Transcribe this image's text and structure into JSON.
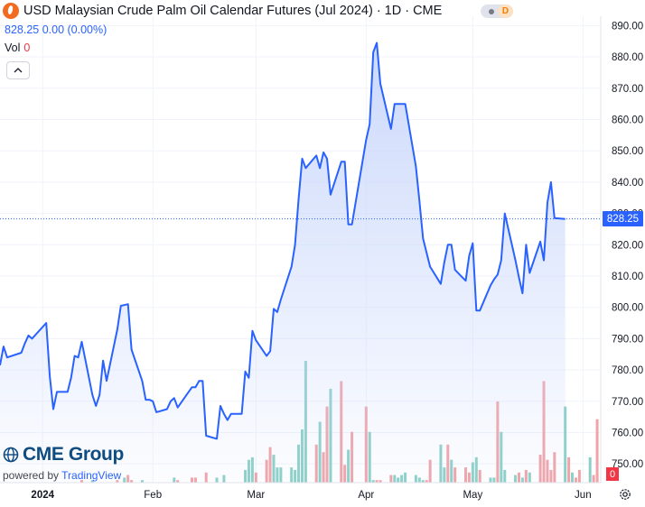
{
  "header": {
    "title": "USD Malaysian Crude Palm Oil Calendar Futures (Jul 2024)",
    "interval": "1D",
    "exchange": "CME",
    "separator": "·",
    "toggle_badge": "D"
  },
  "legend": {
    "price_text": "828.25 0.00 (0.00%)",
    "vol_label": "Vol",
    "vol_value": "0"
  },
  "watermark": {
    "brand": "CME Group",
    "powered_prefix": "powered by",
    "powered_name": "TradingView"
  },
  "icons": [
    "logo-icon",
    "toggle-switch-icon",
    "chevron-up-icon",
    "cme-globe-icon",
    "settings-gear-icon"
  ],
  "colors": {
    "line": "#2962ff",
    "area_top": "#c9d7fb",
    "volume_up": "#8ccfc7",
    "volume_down": "#f0a3a8",
    "price_label_bg": "#2962ff",
    "volume_label_bg": "#f23645",
    "grid": "#f0f3fa",
    "logo": "#f26b21"
  },
  "chart_data": {
    "type": "area",
    "title": "USD Malaysian Crude Palm Oil Calendar Futures (Jul 2024)",
    "interval": "1D",
    "exchange": "CME",
    "xlabel": "",
    "ylabel": "",
    "ylim": [
      744,
      893
    ],
    "y_ticks": [
      890,
      880,
      870,
      860,
      850,
      840,
      830,
      820,
      810,
      800,
      790,
      780,
      770,
      760,
      750
    ],
    "x_ticks": [
      "2024",
      "Feb",
      "Mar",
      "Apr",
      "May",
      "Jun"
    ],
    "x_tick_dates": [
      "2024-01-01",
      "2024-02-01",
      "2024-03-01",
      "2024-04-01",
      "2024-05-01",
      "2024-06-01"
    ],
    "x_range": [
      "2023-12-20",
      "2024-06-06"
    ],
    "grid": true,
    "last_price": 828.25,
    "last_price_label": "828.25",
    "last_volume": 0,
    "last_volume_label": "0",
    "series": [
      {
        "values": [
          [
            "2023-12-20",
            781.5
          ],
          [
            "2023-12-21",
            787.5
          ],
          [
            "2023-12-22",
            784
          ],
          [
            "2023-12-26",
            785.5
          ],
          [
            "2023-12-27",
            788.5
          ],
          [
            "2023-12-28",
            791
          ],
          [
            "2023-12-29",
            790
          ],
          [
            "2024-01-02",
            795
          ],
          [
            "2024-01-03",
            778
          ],
          [
            "2024-01-04",
            767.5
          ],
          [
            "2024-01-05",
            773
          ],
          [
            "2024-01-08",
            773
          ],
          [
            "2024-01-09",
            777.5
          ],
          [
            "2024-01-10",
            784.5
          ],
          [
            "2024-01-11",
            784
          ],
          [
            "2024-01-12",
            789
          ],
          [
            "2024-01-15",
            772
          ],
          [
            "2024-01-16",
            768.5
          ],
          [
            "2024-01-17",
            772
          ],
          [
            "2024-01-18",
            783
          ],
          [
            "2024-01-19",
            776.5
          ],
          [
            "2024-01-22",
            793
          ],
          [
            "2024-01-23",
            800.5
          ],
          [
            "2024-01-25",
            801
          ],
          [
            "2024-01-26",
            786.5
          ],
          [
            "2024-01-29",
            776.5
          ],
          [
            "2024-01-30",
            770.5
          ],
          [
            "2024-01-31",
            770.5
          ],
          [
            "2024-02-01",
            770
          ],
          [
            "2024-02-02",
            766.5
          ],
          [
            "2024-02-05",
            767.5
          ],
          [
            "2024-02-06",
            770
          ],
          [
            "2024-02-07",
            771
          ],
          [
            "2024-02-08",
            768
          ],
          [
            "2024-02-12",
            774.5
          ],
          [
            "2024-02-13",
            774.5
          ],
          [
            "2024-02-14",
            776.5
          ],
          [
            "2024-02-15",
            776.5
          ],
          [
            "2024-02-16",
            759
          ],
          [
            "2024-02-19",
            758
          ],
          [
            "2024-02-20",
            768.5
          ],
          [
            "2024-02-21",
            766
          ],
          [
            "2024-02-22",
            764
          ],
          [
            "2024-02-23",
            766
          ],
          [
            "2024-02-26",
            766
          ],
          [
            "2024-02-27",
            779.5
          ],
          [
            "2024-02-28",
            777.5
          ],
          [
            "2024-02-29",
            792.5
          ],
          [
            "2024-03-01",
            789.5
          ],
          [
            "2024-03-04",
            784.5
          ],
          [
            "2024-03-05",
            786
          ],
          [
            "2024-03-06",
            799.5
          ],
          [
            "2024-03-07",
            798.5
          ],
          [
            "2024-03-08",
            802.5
          ],
          [
            "2024-03-11",
            813
          ],
          [
            "2024-03-12",
            820
          ],
          [
            "2024-03-13",
            834.5
          ],
          [
            "2024-03-14",
            847.5
          ],
          [
            "2024-03-15",
            844.5
          ],
          [
            "2024-03-18",
            848.5
          ],
          [
            "2024-03-19",
            844.5
          ],
          [
            "2024-03-20",
            849.5
          ],
          [
            "2024-03-21",
            847.5
          ],
          [
            "2024-03-22",
            836
          ],
          [
            "2024-03-25",
            846.5
          ],
          [
            "2024-03-26",
            846.5
          ],
          [
            "2024-03-27",
            826.5
          ],
          [
            "2024-03-28",
            826.5
          ],
          [
            "2024-04-01",
            853.5
          ],
          [
            "2024-04-02",
            858.5
          ],
          [
            "2024-04-03",
            881.5
          ],
          [
            "2024-04-04",
            884.5
          ],
          [
            "2024-04-05",
            871.5
          ],
          [
            "2024-04-08",
            857
          ],
          [
            "2024-04-09",
            865
          ],
          [
            "2024-04-12",
            865
          ],
          [
            "2024-04-15",
            845
          ],
          [
            "2024-04-16",
            834
          ],
          [
            "2024-04-17",
            822
          ],
          [
            "2024-04-18",
            817.5
          ],
          [
            "2024-04-19",
            813
          ],
          [
            "2024-04-22",
            807.5
          ],
          [
            "2024-04-23",
            814.5
          ],
          [
            "2024-04-24",
            820
          ],
          [
            "2024-04-25",
            820
          ],
          [
            "2024-04-26",
            812
          ],
          [
            "2024-04-29",
            808.5
          ],
          [
            "2024-04-30",
            816.5
          ],
          [
            "2024-05-01",
            820.5
          ],
          [
            "2024-05-02",
            799
          ],
          [
            "2024-05-03",
            799
          ],
          [
            "2024-05-06",
            807
          ],
          [
            "2024-05-07",
            809
          ],
          [
            "2024-05-08",
            810.5
          ],
          [
            "2024-05-09",
            815
          ],
          [
            "2024-05-10",
            830
          ],
          [
            "2024-05-13",
            815
          ],
          [
            "2024-05-14",
            809.5
          ],
          [
            "2024-05-15",
            804.5
          ],
          [
            "2024-05-16",
            820
          ],
          [
            "2024-05-17",
            811
          ],
          [
            "2024-05-20",
            821
          ],
          [
            "2024-05-21",
            815
          ],
          [
            "2024-05-22",
            833.5
          ],
          [
            "2024-05-23",
            840
          ],
          [
            "2024-05-24",
            828.5
          ],
          [
            "2024-05-27",
            828.25
          ]
        ]
      }
    ],
    "volume": [
      [
        "2024-01-12",
        1,
        "down"
      ],
      [
        "2024-01-15",
        1,
        "up"
      ],
      [
        "2024-01-22",
        1,
        "down"
      ],
      [
        "2024-01-24",
        2,
        "up"
      ],
      [
        "2024-01-25",
        3,
        "down"
      ],
      [
        "2024-01-26",
        1,
        "down"
      ],
      [
        "2024-01-29",
        1,
        "up"
      ],
      [
        "2024-02-07",
        2,
        "up"
      ],
      [
        "2024-02-08",
        1,
        "down"
      ],
      [
        "2024-02-12",
        2,
        "down"
      ],
      [
        "2024-02-13",
        2,
        "down"
      ],
      [
        "2024-02-16",
        4,
        "down"
      ],
      [
        "2024-02-19",
        2,
        "up"
      ],
      [
        "2024-02-21",
        3,
        "up"
      ],
      [
        "2024-02-27",
        5,
        "up"
      ],
      [
        "2024-02-28",
        9,
        "up"
      ],
      [
        "2024-02-29",
        10,
        "up"
      ],
      [
        "2024-03-01",
        4,
        "down"
      ],
      [
        "2024-03-04",
        9,
        "down"
      ],
      [
        "2024-03-05",
        14,
        "down"
      ],
      [
        "2024-03-06",
        11,
        "up"
      ],
      [
        "2024-03-07",
        6,
        "up"
      ],
      [
        "2024-03-08",
        6,
        "up"
      ],
      [
        "2024-03-11",
        6,
        "up"
      ],
      [
        "2024-03-12",
        5,
        "up"
      ],
      [
        "2024-03-13",
        15,
        "up"
      ],
      [
        "2024-03-14",
        21,
        "up"
      ],
      [
        "2024-03-15",
        48,
        "up"
      ],
      [
        "2024-03-18",
        15,
        "down"
      ],
      [
        "2024-03-19",
        24,
        "up"
      ],
      [
        "2024-03-20",
        12,
        "down"
      ],
      [
        "2024-03-21",
        30,
        "down"
      ],
      [
        "2024-03-22",
        37,
        "up"
      ],
      [
        "2024-03-25",
        40,
        "down"
      ],
      [
        "2024-03-26",
        7,
        "down"
      ],
      [
        "2024-03-27",
        13,
        "up"
      ],
      [
        "2024-03-28",
        20,
        "down"
      ],
      [
        "2024-04-01",
        30,
        "down"
      ],
      [
        "2024-04-02",
        20,
        "up"
      ],
      [
        "2024-04-03",
        1,
        "up"
      ],
      [
        "2024-04-04",
        1,
        "down"
      ],
      [
        "2024-04-05",
        1,
        "down"
      ],
      [
        "2024-04-08",
        3,
        "down"
      ],
      [
        "2024-04-09",
        3,
        "up"
      ],
      [
        "2024-04-10",
        2,
        "up"
      ],
      [
        "2024-04-11",
        3,
        "up"
      ],
      [
        "2024-04-12",
        4,
        "up"
      ],
      [
        "2024-04-15",
        3,
        "up"
      ],
      [
        "2024-04-16",
        2,
        "up"
      ],
      [
        "2024-04-17",
        1,
        "up"
      ],
      [
        "2024-04-18",
        1,
        "down"
      ],
      [
        "2024-04-19",
        9,
        "down"
      ],
      [
        "2024-04-22",
        15,
        "up"
      ],
      [
        "2024-04-23",
        6,
        "up"
      ],
      [
        "2024-04-24",
        15,
        "down"
      ],
      [
        "2024-04-25",
        9,
        "up"
      ],
      [
        "2024-04-26",
        6,
        "down"
      ],
      [
        "2024-04-29",
        6,
        "down"
      ],
      [
        "2024-04-30",
        4,
        "down"
      ],
      [
        "2024-05-01",
        8,
        "up"
      ],
      [
        "2024-05-02",
        10,
        "up"
      ],
      [
        "2024-05-03",
        5,
        "down"
      ],
      [
        "2024-05-06",
        2,
        "up"
      ],
      [
        "2024-05-07",
        2,
        "up"
      ],
      [
        "2024-05-08",
        32,
        "down"
      ],
      [
        "2024-05-09",
        20,
        "up"
      ],
      [
        "2024-05-10",
        5,
        "up"
      ],
      [
        "2024-05-13",
        3,
        "up"
      ],
      [
        "2024-05-14",
        4,
        "down"
      ],
      [
        "2024-05-15",
        2,
        "up"
      ],
      [
        "2024-05-16",
        5,
        "down"
      ],
      [
        "2024-05-17",
        4,
        "up"
      ],
      [
        "2024-05-20",
        11,
        "down"
      ],
      [
        "2024-05-21",
        40,
        "down"
      ],
      [
        "2024-05-22",
        9,
        "down"
      ],
      [
        "2024-05-23",
        5,
        "down"
      ],
      [
        "2024-05-24",
        12,
        "down"
      ],
      [
        "2024-05-27",
        30,
        "up"
      ],
      [
        "2024-05-28",
        10,
        "down"
      ],
      [
        "2024-05-29",
        4,
        "up"
      ],
      [
        "2024-05-30",
        2,
        "down"
      ],
      [
        "2024-05-31",
        5,
        "down"
      ],
      [
        "2024-06-03",
        10,
        "up"
      ],
      [
        "2024-06-04",
        3,
        "down"
      ],
      [
        "2024-06-05",
        25,
        "down"
      ]
    ]
  }
}
